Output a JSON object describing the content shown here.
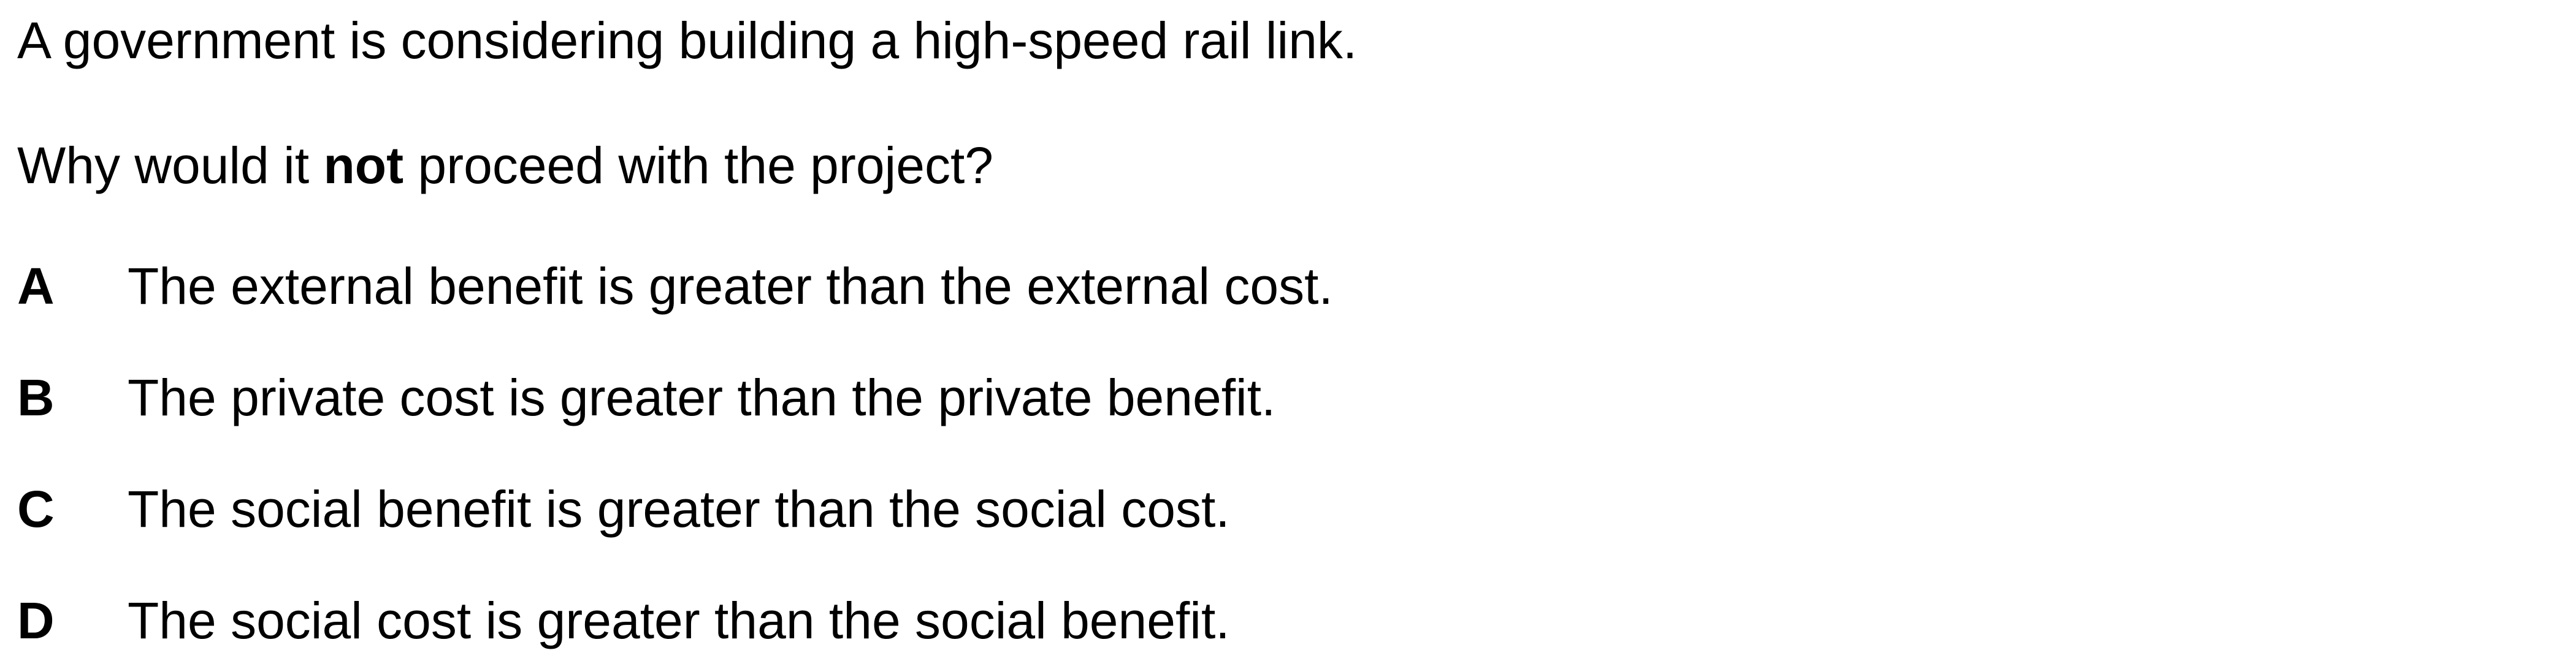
{
  "stem": "A government is considering building a high-speed rail link.",
  "question": {
    "before": "Why would it ",
    "emphasis": "not",
    "after": " proceed with the project?"
  },
  "options": [
    {
      "letter": "A",
      "text": "The external benefit is greater than the external cost."
    },
    {
      "letter": "B",
      "text": "The private cost is greater than the private benefit."
    },
    {
      "letter": "C",
      "text": "The social benefit is greater than the social cost."
    },
    {
      "letter": "D",
      "text": "The social cost is greater than the social benefit."
    }
  ]
}
